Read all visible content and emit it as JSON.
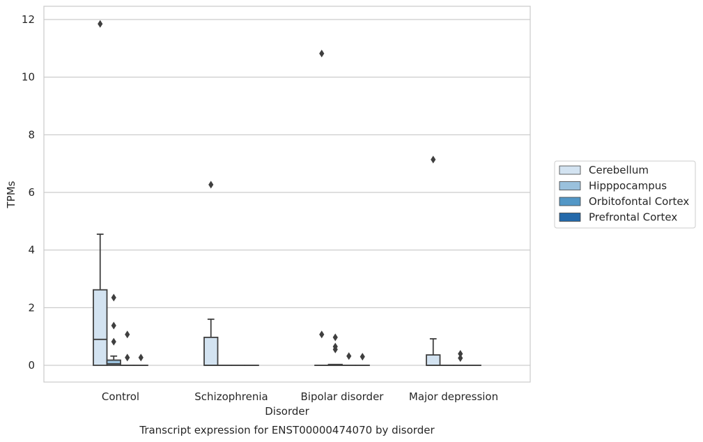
{
  "chart_data": {
    "type": "box",
    "xlabel": "Disorder",
    "ylabel": "TPMs",
    "caption": "Transcript expression for ENST00000474070 by disorder",
    "ylim": [
      -0.58,
      12.45
    ],
    "yticks": [
      0,
      2,
      4,
      6,
      8,
      10,
      12
    ],
    "grid": "horizontal",
    "legend_position": "right",
    "categories": [
      "Control",
      "Schizophrenia",
      "Bipolar disorder",
      "Major depression"
    ],
    "series": [
      {
        "name": "Cerebellum",
        "color": "#d3e3f1"
      },
      {
        "name": "Hipppocampus",
        "color": "#9ac1dd"
      },
      {
        "name": "Orbitofontal Cortex",
        "color": "#5397c6"
      },
      {
        "name": "Prefrontal Cortex",
        "color": "#2469aa"
      }
    ],
    "boxes": [
      [
        {
          "q1": 0,
          "median": 0.9,
          "q3": 2.62,
          "whisker_low": 0,
          "whisker_high": 4.55,
          "outliers": [
            11.85
          ]
        },
        {
          "q1": 0,
          "median": 0.05,
          "q3": 0.18,
          "whisker_low": 0,
          "whisker_high": 0.32,
          "outliers": [
            2.35,
            1.38,
            0.82
          ]
        },
        {
          "q1": 0,
          "median": 0,
          "q3": 0,
          "whisker_low": 0,
          "whisker_high": 0,
          "outliers": [
            1.07,
            0.27
          ]
        },
        {
          "q1": 0,
          "median": 0,
          "q3": 0,
          "whisker_low": 0,
          "whisker_high": 0,
          "outliers": [
            0.27
          ]
        }
      ],
      [
        {
          "q1": 0,
          "median": 0,
          "q3": 0.97,
          "whisker_low": 0,
          "whisker_high": 1.6,
          "outliers": [
            6.27
          ]
        },
        {
          "q1": 0,
          "median": 0,
          "q3": 0,
          "whisker_low": 0,
          "whisker_high": 0,
          "outliers": []
        },
        {
          "q1": 0,
          "median": 0,
          "q3": 0,
          "whisker_low": 0,
          "whisker_high": 0,
          "outliers": []
        },
        {
          "q1": 0,
          "median": 0,
          "q3": 0,
          "whisker_low": 0,
          "whisker_high": 0,
          "outliers": []
        }
      ],
      [
        {
          "q1": 0,
          "median": 0,
          "q3": 0,
          "whisker_low": 0,
          "whisker_high": 0,
          "outliers": [
            10.82,
            1.07
          ]
        },
        {
          "q1": 0,
          "median": 0,
          "q3": 0.03,
          "whisker_low": 0,
          "whisker_high": 0.03,
          "outliers": [
            0.97,
            0.65,
            0.55
          ]
        },
        {
          "q1": 0,
          "median": 0,
          "q3": 0,
          "whisker_low": 0,
          "whisker_high": 0,
          "outliers": [
            0.32
          ]
        },
        {
          "q1": 0,
          "median": 0,
          "q3": 0,
          "whisker_low": 0,
          "whisker_high": 0,
          "outliers": [
            0.3
          ]
        }
      ],
      [
        {
          "q1": 0,
          "median": 0,
          "q3": 0.36,
          "whisker_low": 0,
          "whisker_high": 0.92,
          "outliers": [
            7.14
          ]
        },
        {
          "q1": 0,
          "median": 0,
          "q3": 0,
          "whisker_low": 0,
          "whisker_high": 0,
          "outliers": []
        },
        {
          "q1": 0,
          "median": 0,
          "q3": 0,
          "whisker_low": 0,
          "whisker_high": 0,
          "outliers": [
            0.4,
            0.25
          ]
        },
        {
          "q1": 0,
          "median": 0,
          "q3": 0,
          "whisker_low": 0,
          "whisker_high": 0,
          "outliers": []
        }
      ]
    ]
  }
}
